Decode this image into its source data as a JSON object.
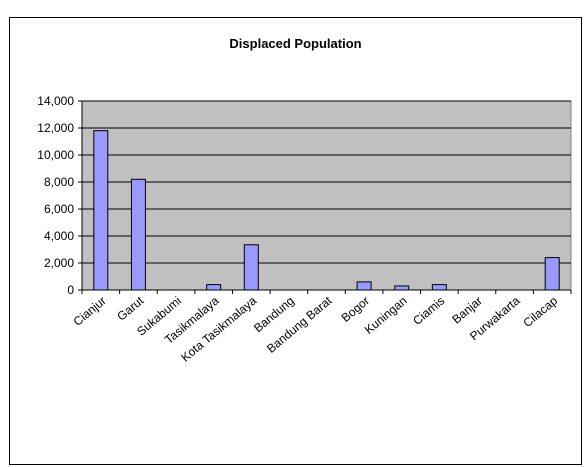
{
  "chart_data": {
    "type": "bar",
    "title": "Displaced Population",
    "categories": [
      "Cianjur",
      "Garut",
      "Sukabumi",
      "Tasikmalaya",
      "Kota Tasikmalaya",
      "Bandung",
      "Bandung Barat",
      "Bogor",
      "Kuningan",
      "Ciamis",
      "Banjar",
      "Purwakarta",
      "Cilacap"
    ],
    "values": [
      11800,
      8200,
      0,
      400,
      3350,
      0,
      0,
      600,
      300,
      400,
      0,
      0,
      2400
    ],
    "yticks": [
      "0",
      "2,000",
      "4,000",
      "6,000",
      "8,000",
      "10,000",
      "12,000",
      "14,000"
    ],
    "ylim": [
      0,
      14000
    ],
    "grid": true,
    "legend": "none",
    "colors": {
      "bar": "#9999ff",
      "plot_bg": "#c0c0c0",
      "grid": "#000000"
    }
  }
}
